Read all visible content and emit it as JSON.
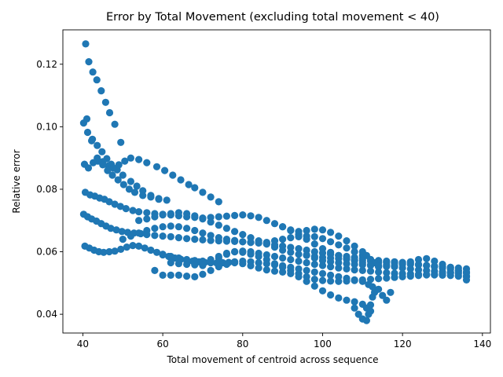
{
  "chart_data": {
    "type": "scatter",
    "title": "Error by Total Movement (excluding total movement < 40)",
    "xlabel": "Total movement of centroid across sequence",
    "ylabel": "Relative error",
    "xlim": [
      35,
      142
    ],
    "ylim": [
      0.034,
      0.131
    ],
    "xticks": [
      40,
      60,
      80,
      100,
      120,
      140
    ],
    "yticks": [
      0.04,
      0.06,
      0.08,
      0.1,
      0.12
    ],
    "xtick_labels": [
      "40",
      "60",
      "80",
      "100",
      "120",
      "140"
    ],
    "ytick_labels": [
      "0.04",
      "0.06",
      "0.08",
      "0.10",
      "0.12"
    ],
    "grid": false,
    "legend": "none",
    "marker_color": "#1f77b4",
    "series": [
      {
        "name": "",
        "x": [
          40.7,
          41.5,
          42.5,
          43.5,
          44.6,
          45.7,
          46.7,
          48.0,
          49.5,
          40.2,
          41.2,
          42.4,
          43.6,
          44.8,
          46.0,
          47.1,
          48.6,
          50.0,
          52.0,
          53.5,
          55.0,
          57.0,
          59.0,
          41.0,
          42.2,
          43.6,
          45.0,
          46.4,
          47.6,
          49.0,
          50.5,
          52.0,
          54.0,
          56.0,
          58.5,
          60.5,
          62.5,
          64.5,
          66.5,
          68.0,
          70.0,
          72.0,
          74.0,
          40.4,
          41.4,
          42.6,
          43.8,
          45.0,
          46.2,
          47.4,
          48.8,
          50.2,
          51.6,
          53.0,
          55.0,
          57.0,
          59.0,
          61.0,
          40.6,
          41.8,
          43.0,
          44.2,
          45.4,
          46.6,
          48.0,
          49.4,
          50.8,
          52.5,
          54.0,
          56.0,
          58.0,
          60.0,
          62.0,
          64.0,
          66.0,
          68.0,
          70.0,
          72.0,
          74.0,
          76.0,
          78.0,
          80.0,
          82.0,
          84.0,
          86.0,
          88.0,
          90.0,
          92.0,
          94.0,
          96.0,
          98.0,
          100.0,
          102.0,
          104.0,
          106.0,
          108.0,
          110.0,
          112.0,
          114.0,
          40.2,
          41.2,
          42.2,
          43.4,
          44.6,
          45.8,
          47.0,
          48.4,
          49.8,
          51.2,
          52.8,
          54.5,
          56.0,
          58.0,
          60.0,
          62.0,
          64.0,
          66.0,
          68.0,
          70.0,
          72.0,
          74.0,
          76.0,
          78.0,
          80.0,
          82.0,
          84.0,
          86.0,
          88.0,
          90.0,
          92.0,
          94.0,
          96.0,
          98.0,
          100.0,
          102.0,
          104.0,
          106.0,
          108.0,
          110.0,
          112.0,
          114.0,
          116.0,
          118.0,
          120.0,
          122.0,
          124.0,
          126.0,
          128.0,
          130.0,
          132.0,
          134.0,
          136.0,
          40.5,
          41.6,
          42.8,
          44.0,
          45.2,
          46.6,
          48.0,
          49.5,
          51.0,
          52.5,
          54.0,
          55.5,
          57.0,
          58.5,
          60.0,
          61.5,
          63.0,
          64.5,
          66.0,
          67.5,
          69.0,
          70.5,
          72.0,
          73.5,
          75.0,
          76.5,
          78.0,
          80.0,
          82.0,
          84.0,
          86.0,
          88.0,
          90.0,
          92.0,
          94.0,
          96.0,
          98.0,
          100.0,
          102.0,
          104.0,
          106.0,
          108.0,
          110.0,
          111.5,
          112.5,
          50.0,
          52.0,
          54.0,
          56.0,
          58.0,
          60.0,
          62.0,
          64.0,
          66.0,
          68.0,
          70.0,
          72.0,
          74.0,
          76.0,
          78.0,
          80.0,
          82.0,
          84.0,
          86.0,
          88.0,
          90.0,
          92.0,
          94.0,
          96.0,
          98.0,
          100.0,
          102.0,
          104.0,
          106.0,
          108.0,
          110.0,
          112.0,
          114.0,
          116.0,
          118.0,
          120.0,
          122.0,
          124.0,
          126.0,
          128.0,
          130.0,
          132.0,
          134.0,
          136.0,
          54.0,
          56.0,
          58.0,
          60.0,
          62.0,
          64.0,
          66.0,
          68.0,
          70.0,
          72.0,
          74.0,
          76.0,
          78.0,
          80.0,
          82.0,
          84.0,
          86.0,
          88.0,
          90.0,
          92.0,
          94.0,
          96.0,
          98.0,
          100.0,
          102.0,
          104.0,
          106.0,
          108.0,
          110.0,
          112.0,
          114.0,
          116.0,
          118.0,
          120.0,
          122.0,
          124.0,
          126.0,
          128.0,
          130.0,
          132.0,
          134.0,
          136.0,
          58.0,
          60.0,
          62.0,
          64.0,
          66.0,
          68.0,
          70.0,
          72.0,
          74.0,
          76.0,
          78.0,
          80.0,
          82.0,
          84.0,
          86.0,
          88.0,
          90.0,
          92.0,
          94.0,
          96.0,
          98.0,
          100.0,
          102.0,
          104.0,
          106.0,
          108.0,
          110.0,
          111.0,
          112.0,
          60.0,
          62.0,
          64.0,
          66.0,
          68.0,
          70.0,
          72.0,
          74.0,
          76.0,
          78.0,
          80.0,
          82.0,
          84.0,
          86.0,
          88.0,
          90.0,
          92.0,
          94.0,
          96.0,
          98.0,
          100.0,
          102.0,
          104.0,
          106.0,
          108.0,
          110.0,
          112.0,
          114.0,
          116.0,
          118.0,
          120.0,
          122.0,
          124.0,
          126.0,
          128.0,
          130.0,
          132.0,
          134.0,
          136.0,
          62.0,
          64.0,
          66.0,
          68.0,
          70.0,
          72.0,
          74.0,
          76.0,
          78.0,
          80.0,
          82.0,
          84.0,
          86.0,
          88.0,
          90.0,
          92.0,
          94.0,
          96.0,
          98.0,
          100.0,
          102.0,
          104.0,
          106.0,
          108.0,
          110.0,
          112.0,
          114.0,
          116.0,
          118.0,
          120.0,
          122.0,
          124.0,
          126.0,
          128.0,
          130.0,
          132.0,
          134.0,
          136.0,
          90.0,
          92.0,
          94.0,
          96.0,
          98.0,
          100.0,
          102.0,
          104.0,
          106.0,
          108.0,
          110.0,
          111.0,
          112.0,
          113.0,
          114.0,
          96.0,
          98.0,
          100.0,
          102.0,
          104.0,
          106.0,
          108.0,
          110.0,
          112.0,
          114.0,
          116.0,
          118.0,
          120.0,
          122.0,
          124.0,
          126.0,
          128.0,
          130.0,
          132.0,
          134.0,
          136.0,
          108.0,
          109.0,
          110.0,
          111.0,
          111.5,
          112.0,
          112.5,
          113.0,
          114.0,
          115.0,
          116.0,
          117.0
        ],
        "y": [
          0.1265,
          0.1208,
          0.1175,
          0.115,
          0.1115,
          0.1078,
          0.1045,
          0.1008,
          0.095,
          0.1012,
          0.0982,
          0.096,
          0.094,
          0.092,
          0.0898,
          0.088,
          0.0862,
          0.0845,
          0.0825,
          0.081,
          0.0795,
          0.078,
          0.0768,
          0.1025,
          0.0955,
          0.09,
          0.0888,
          0.0875,
          0.0868,
          0.0878,
          0.089,
          0.09,
          0.0895,
          0.0885,
          0.0872,
          0.086,
          0.0845,
          0.083,
          0.0815,
          0.0805,
          0.079,
          0.0775,
          0.076,
          0.088,
          0.0868,
          0.0885,
          0.089,
          0.0878,
          0.086,
          0.0845,
          0.083,
          0.0815,
          0.08,
          0.079,
          0.078,
          0.0775,
          0.077,
          0.0765,
          0.079,
          0.0782,
          0.0778,
          0.0772,
          0.0768,
          0.076,
          0.0752,
          0.0745,
          0.0738,
          0.0732,
          0.0728,
          0.0725,
          0.0722,
          0.072,
          0.0718,
          0.0715,
          0.0712,
          0.071,
          0.0708,
          0.071,
          0.0712,
          0.0714,
          0.0716,
          0.0718,
          0.0715,
          0.071,
          0.07,
          0.069,
          0.068,
          0.0668,
          0.0655,
          0.064,
          0.0625,
          0.061,
          0.0598,
          0.0588,
          0.058,
          0.0572,
          0.0565,
          0.0558,
          0.0552,
          0.072,
          0.0712,
          0.0705,
          0.0698,
          0.069,
          0.0682,
          0.0675,
          0.067,
          0.0665,
          0.0662,
          0.066,
          0.0658,
          0.0655,
          0.0652,
          0.065,
          0.0648,
          0.0645,
          0.0642,
          0.064,
          0.0638,
          0.0636,
          0.0635,
          0.0634,
          0.0633,
          0.0632,
          0.063,
          0.0628,
          0.0625,
          0.0622,
          0.0618,
          0.0614,
          0.061,
          0.0605,
          0.06,
          0.0596,
          0.0592,
          0.0588,
          0.0585,
          0.0582,
          0.0578,
          0.0575,
          0.0572,
          0.057,
          0.0568,
          0.0566,
          0.0564,
          0.056,
          0.0556,
          0.0552,
          0.0548,
          0.0544,
          0.054,
          0.0532,
          0.0618,
          0.0612,
          0.0605,
          0.06,
          0.0598,
          0.06,
          0.0602,
          0.0608,
          0.0615,
          0.062,
          0.0618,
          0.0612,
          0.0605,
          0.0598,
          0.0592,
          0.0585,
          0.058,
          0.0576,
          0.0572,
          0.057,
          0.0568,
          0.0566,
          0.0565,
          0.0564,
          0.0565,
          0.0566,
          0.0568,
          0.057,
          0.0568,
          0.0565,
          0.0562,
          0.0558,
          0.0555,
          0.055,
          0.0545,
          0.054,
          0.0535,
          0.053,
          0.0525,
          0.052,
          0.0515,
          0.051,
          0.0505,
          0.0495,
          0.0488,
          0.064,
          0.065,
          0.066,
          0.0668,
          0.0675,
          0.068,
          0.0682,
          0.068,
          0.0675,
          0.0668,
          0.066,
          0.0652,
          0.0645,
          0.064,
          0.0636,
          0.0632,
          0.063,
          0.0628,
          0.063,
          0.0635,
          0.064,
          0.0645,
          0.0648,
          0.065,
          0.0648,
          0.0642,
          0.0632,
          0.0622,
          0.0612,
          0.06,
          0.0588,
          0.0575,
          0.0565,
          0.0558,
          0.0552,
          0.0548,
          0.0545,
          0.0542,
          0.054,
          0.0538,
          0.0536,
          0.0534,
          0.053,
          0.0522,
          0.07,
          0.0705,
          0.0712,
          0.0718,
          0.0722,
          0.0725,
          0.0722,
          0.0715,
          0.0705,
          0.0695,
          0.0685,
          0.0675,
          0.0665,
          0.0655,
          0.0645,
          0.0635,
          0.0625,
          0.0615,
          0.0605,
          0.0598,
          0.0592,
          0.0588,
          0.0585,
          0.0582,
          0.058,
          0.0578,
          0.0576,
          0.0574,
          0.0572,
          0.057,
          0.0568,
          0.0566,
          0.0564,
          0.0562,
          0.056,
          0.0558,
          0.0556,
          0.0554,
          0.0552,
          0.055,
          0.0548,
          0.0545,
          0.054,
          0.0525,
          0.0525,
          0.0525,
          0.0522,
          0.052,
          0.0528,
          0.054,
          0.0552,
          0.056,
          0.0565,
          0.0562,
          0.0555,
          0.0548,
          0.0542,
          0.0538,
          0.0535,
          0.053,
          0.052,
          0.0505,
          0.049,
          0.0475,
          0.0462,
          0.0452,
          0.0445,
          0.044,
          0.0432,
          0.042,
          0.041,
          0.059,
          0.0585,
          0.058,
          0.0575,
          0.0572,
          0.057,
          0.0575,
          0.0585,
          0.0595,
          0.06,
          0.0602,
          0.06,
          0.0595,
          0.059,
          0.0585,
          0.058,
          0.0575,
          0.057,
          0.0565,
          0.056,
          0.0556,
          0.0552,
          0.0548,
          0.0545,
          0.0542,
          0.054,
          0.0538,
          0.0535,
          0.0533,
          0.0531,
          0.053,
          0.0529,
          0.0528,
          0.0527,
          0.0526,
          0.0525,
          0.0524,
          0.0522,
          0.052,
          0.0565,
          0.0562,
          0.056,
          0.0558,
          0.0556,
          0.0565,
          0.058,
          0.0592,
          0.06,
          0.0598,
          0.0592,
          0.0585,
          0.0575,
          0.0562,
          0.055,
          0.054,
          0.053,
          0.052,
          0.0512,
          0.0508,
          0.0506,
          0.0505,
          0.0506,
          0.0508,
          0.051,
          0.0512,
          0.0514,
          0.0516,
          0.0518,
          0.052,
          0.0522,
          0.0524,
          0.0526,
          0.0528,
          0.053,
          0.0532,
          0.0534,
          0.0536,
          0.068,
          0.067,
          0.0665,
          0.0668,
          0.0672,
          0.067,
          0.0662,
          0.065,
          0.0635,
          0.0618,
          0.06,
          0.0588,
          0.0575,
          0.0565,
          0.0555,
          0.059,
          0.058,
          0.0572,
          0.0568,
          0.0565,
          0.0562,
          0.056,
          0.0558,
          0.0556,
          0.0554,
          0.0553,
          0.0555,
          0.056,
          0.0568,
          0.0575,
          0.0578,
          0.057,
          0.056,
          0.055,
          0.054,
          0.051,
          0.042,
          0.04,
          0.0385,
          0.038,
          0.04,
          0.043,
          0.0455,
          0.047,
          0.048,
          0.046,
          0.0445,
          0.047
        ]
      }
    ]
  }
}
